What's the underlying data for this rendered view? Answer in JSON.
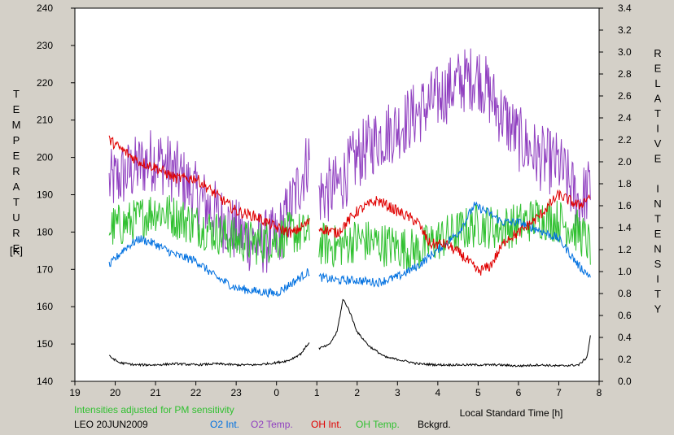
{
  "chart_data": {
    "type": "line",
    "station_label": "LEO 20JUN2009",
    "note": "Intensities adjusted for PM sensitivity",
    "xlabel": "Local Standard Time [h]",
    "ylabel_left": "TEMPERATURE",
    "ylabel_left_unit": "[K]",
    "ylabel_right": "RELATIVE INTENSITY",
    "x_ticks": [
      "19",
      "20",
      "21",
      "22",
      "23",
      "0",
      "1",
      "2",
      "3",
      "4",
      "5",
      "6",
      "7",
      "8"
    ],
    "x_range_hours": [
      19,
      32
    ],
    "y_left_range": [
      140,
      240
    ],
    "y_left_ticks": [
      "140",
      "150",
      "160",
      "170",
      "180",
      "190",
      "200",
      "210",
      "220",
      "230",
      "240"
    ],
    "y_right_range": [
      0.0,
      3.4
    ],
    "y_right_ticks": [
      "0.0",
      "0.2",
      "0.4",
      "0.6",
      "0.8",
      "1.0",
      "1.2",
      "1.4",
      "1.6",
      "1.8",
      "2.0",
      "2.2",
      "2.4",
      "2.6",
      "2.8",
      "3.0",
      "3.2",
      "3.4"
    ],
    "legend": [
      {
        "name": "O2 Int.",
        "color": "#0070e0"
      },
      {
        "name": "O2 Temp.",
        "color": "#9040c0"
      },
      {
        "name": "OH Int.",
        "color": "#e00000"
      },
      {
        "name": "OH Temp.",
        "color": "#30c030"
      },
      {
        "name": "Bckgrd.",
        "color": "#000000"
      }
    ],
    "note_color": "#30c030",
    "gap_hours": [
      24.82,
      25.05
    ],
    "series": [
      {
        "name": "O2 Temp.",
        "axis": "left",
        "color": "#9040c0",
        "noise": 9,
        "x": [
          19.85,
          20.5,
          21.0,
          21.5,
          22.0,
          22.5,
          23.0,
          23.5,
          24.0,
          24.4,
          24.8,
          25.05,
          25.5,
          26.0,
          26.5,
          27.0,
          27.5,
          28.0,
          28.5,
          29.0,
          29.5,
          30.0,
          30.5,
          31.0,
          31.5,
          31.8
        ],
        "y": [
          193,
          197,
          200,
          196,
          190,
          185,
          180,
          177,
          178,
          188,
          200,
          190,
          192,
          200,
          205,
          208,
          212,
          216,
          220,
          222,
          213,
          205,
          200,
          198,
          188,
          192
        ]
      },
      {
        "name": "OH Temp.",
        "axis": "left",
        "color": "#30c030",
        "noise": 6,
        "x": [
          19.85,
          20.5,
          21.0,
          21.5,
          22.0,
          22.5,
          23.0,
          23.5,
          24.0,
          24.4,
          24.8,
          25.05,
          25.5,
          26.0,
          26.5,
          27.0,
          27.5,
          28.0,
          28.5,
          29.0,
          29.5,
          30.0,
          30.5,
          31.0,
          31.5,
          31.8
        ],
        "y": [
          181,
          183,
          186,
          184,
          182,
          180,
          178,
          177,
          178,
          180,
          179,
          177,
          176,
          178,
          177,
          176,
          175,
          178,
          180,
          182,
          181,
          182,
          184,
          183,
          180,
          176
        ]
      },
      {
        "name": "OH Int.",
        "axis": "right",
        "color": "#e00000",
        "noise": 0.05,
        "x": [
          19.85,
          20.2,
          20.6,
          21.0,
          21.5,
          22.0,
          22.5,
          23.0,
          23.5,
          24.0,
          24.4,
          24.8,
          25.05,
          25.5,
          26.0,
          26.5,
          27.0,
          27.5,
          27.8,
          28.2,
          28.6,
          29.0,
          29.3,
          29.7,
          30.0,
          30.5,
          31.0,
          31.5,
          31.8
        ],
        "y": [
          2.2,
          2.1,
          2.0,
          1.95,
          1.85,
          1.85,
          1.7,
          1.55,
          1.5,
          1.4,
          1.35,
          1.45,
          1.4,
          1.35,
          1.55,
          1.65,
          1.55,
          1.45,
          1.25,
          1.25,
          1.15,
          1.0,
          1.05,
          1.3,
          1.35,
          1.5,
          1.7,
          1.6,
          1.7
        ]
      },
      {
        "name": "O2 Int.",
        "axis": "right",
        "color": "#0070e0",
        "noise": 0.04,
        "x": [
          19.85,
          20.2,
          20.6,
          21.0,
          21.5,
          22.0,
          22.5,
          23.0,
          23.5,
          24.0,
          24.4,
          24.8,
          25.05,
          25.5,
          26.0,
          26.5,
          27.0,
          27.5,
          28.0,
          28.5,
          28.9,
          29.2,
          29.6,
          30.0,
          30.5,
          31.0,
          31.5,
          31.8
        ],
        "y": [
          1.05,
          1.2,
          1.3,
          1.25,
          1.15,
          1.1,
          0.95,
          0.85,
          0.82,
          0.8,
          0.9,
          1.0,
          0.95,
          0.92,
          0.92,
          0.9,
          0.95,
          1.05,
          1.2,
          1.35,
          1.6,
          1.55,
          1.45,
          1.45,
          1.38,
          1.3,
          1.05,
          0.95
        ]
      },
      {
        "name": "Bckgrd.",
        "axis": "right",
        "color": "#000000",
        "noise": 0.01,
        "x": [
          19.85,
          20.1,
          20.5,
          21.0,
          21.5,
          22.0,
          22.5,
          23.0,
          23.5,
          24.0,
          24.3,
          24.6,
          24.8,
          25.05,
          25.3,
          25.5,
          25.65,
          25.8,
          26.0,
          26.3,
          26.7,
          27.0,
          27.5,
          28.0,
          28.5,
          29.0,
          29.5,
          30.0,
          30.5,
          31.0,
          31.5,
          31.7,
          31.8
        ],
        "y": [
          0.23,
          0.17,
          0.15,
          0.15,
          0.16,
          0.15,
          0.16,
          0.15,
          0.15,
          0.17,
          0.19,
          0.25,
          0.35,
          0.3,
          0.33,
          0.45,
          0.75,
          0.65,
          0.45,
          0.32,
          0.22,
          0.2,
          0.16,
          0.15,
          0.15,
          0.15,
          0.15,
          0.14,
          0.15,
          0.14,
          0.15,
          0.22,
          0.45
        ]
      }
    ]
  }
}
